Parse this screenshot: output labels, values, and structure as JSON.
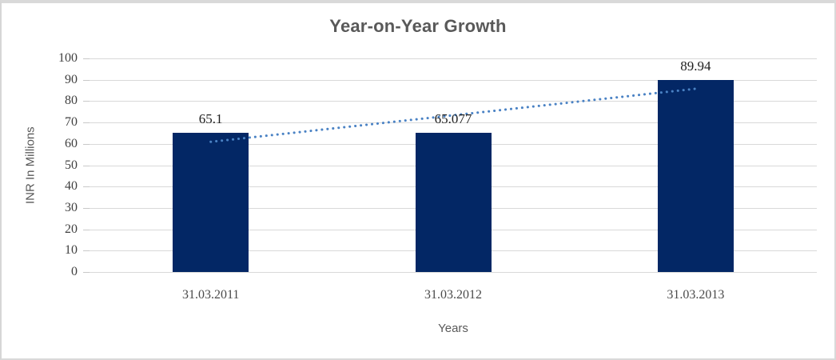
{
  "chart_data": {
    "type": "bar",
    "title": "Year-on-Year Growth",
    "categories": [
      "31.03.2011",
      "31.03.2012",
      "31.03.2013"
    ],
    "values": [
      65.1,
      65.077,
      89.94
    ],
    "data_labels": [
      "65.1",
      "65.077",
      "89.94"
    ],
    "xlabel": "Years",
    "ylabel": "INR In Millions",
    "ylim": [
      0,
      100
    ],
    "yticks": [
      0,
      10,
      20,
      30,
      40,
      50,
      60,
      70,
      80,
      90,
      100
    ],
    "grid": true,
    "legend": "none",
    "bar_color": "#032765",
    "trendline": {
      "type": "linear",
      "style": "dotted",
      "color": "#4a82c4",
      "y_at_first_category": 60.95,
      "y_at_last_category": 85.79
    }
  },
  "colors": {
    "title_text": "#595959",
    "axis_tick_text": "#404040",
    "data_label_text": "#1f1f1f",
    "axis_title_text": "#595959",
    "gridline": "#d9d9d9",
    "chart_border": "#d9d9d9",
    "background": "#ffffff"
  }
}
